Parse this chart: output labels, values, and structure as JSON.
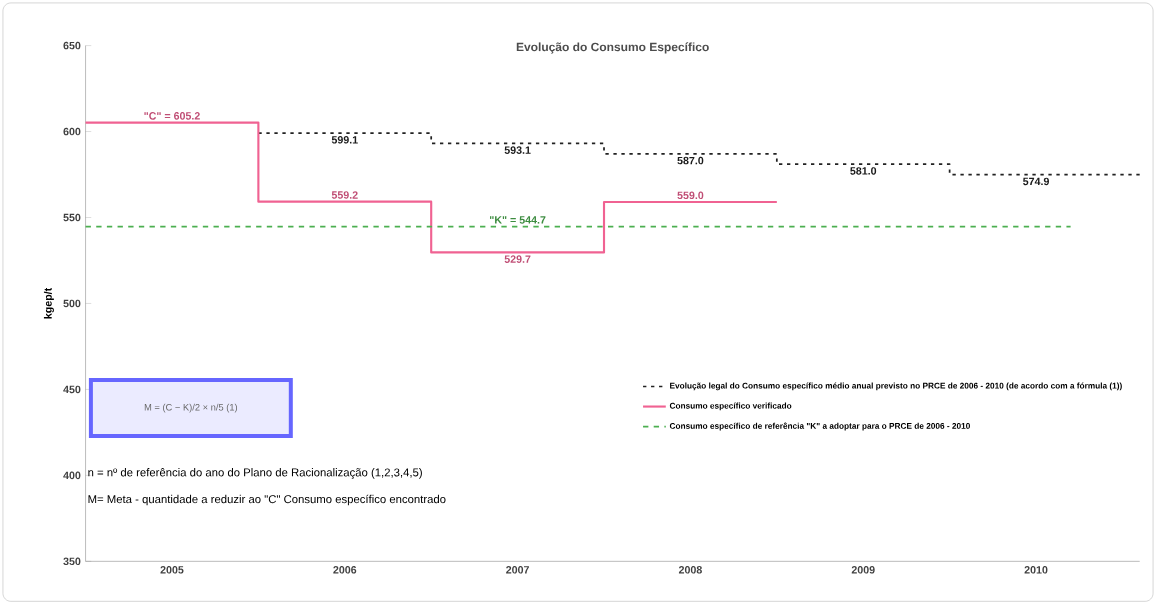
{
  "chart_data": {
    "type": "line",
    "title": "Evolução do Consumo Específico",
    "ylabel": "kgep/t",
    "xlim": [
      2004.5,
      2010.6
    ],
    "xticks": [
      2005,
      2006,
      2007,
      2008,
      2009,
      2010
    ],
    "ylim": [
      350,
      650
    ],
    "yticks": [
      350,
      400,
      450,
      500,
      550,
      600,
      650
    ],
    "grid": false,
    "legend": "right",
    "marker": "none",
    "series": [
      {
        "name": "Evolução legal do Consumo específico médio anual previsto no PRCE de 2006 - 2010 (de acordo com a fórmula (1))",
        "color": "#222222",
        "line_style": "dotted",
        "x": [
          2005.5,
          2006,
          2006.5,
          2006.5,
          2007,
          2007.5,
          2007.5,
          2008,
          2008.5,
          2008.5,
          2009,
          2009.5,
          2009.5,
          2010,
          2010.6
        ],
        "values": [
          599.1,
          599.1,
          599.1,
          593.1,
          593.1,
          593.1,
          587.0,
          587.0,
          587.0,
          581.0,
          581.0,
          581.0,
          574.9,
          574.9,
          574.9
        ],
        "value_labels": [
          null,
          "599.1",
          null,
          null,
          "593.1",
          null,
          null,
          "587.0",
          null,
          null,
          "581.0",
          null,
          null,
          "574.9",
          null
        ]
      },
      {
        "name": "Consumo específico verificado",
        "color": "#f06292",
        "line_style": "solid",
        "x": [
          2004.5,
          2005,
          2005.5,
          2005.5,
          2006,
          2006.5,
          2006.5,
          2007,
          2007.5,
          2007.5,
          2008,
          2008.5
        ],
        "values": [
          605.2,
          605.2,
          605.2,
          559.2,
          559.2,
          559.2,
          529.7,
          529.7,
          529.7,
          559.0,
          559.0,
          559.0
        ],
        "value_labels": [
          null,
          "\"C\" =  605.2",
          null,
          null,
          "559.2",
          null,
          null,
          "529.7",
          null,
          null,
          "559.0",
          null
        ]
      },
      {
        "name": "Consumo específico de referência \"K\" a adoptar para o PRCE de 2006 - 2010",
        "color": "#4caf50",
        "line_style": "dashed",
        "x": [
          2004.5,
          2007,
          2010.2
        ],
        "values": [
          544.7,
          544.7,
          544.7
        ],
        "value_labels": [
          null,
          "\"K\" =  544.7",
          null
        ]
      }
    ],
    "annotations": [
      "M = (C − K)/2 × n/5     (1)",
      "n =  nº de referência do ano do Plano de Racionalização (1,2,3,4,5)",
      "M= Meta - quantidade a reduzir ao \"C\" Consumo específico encontrado"
    ]
  }
}
